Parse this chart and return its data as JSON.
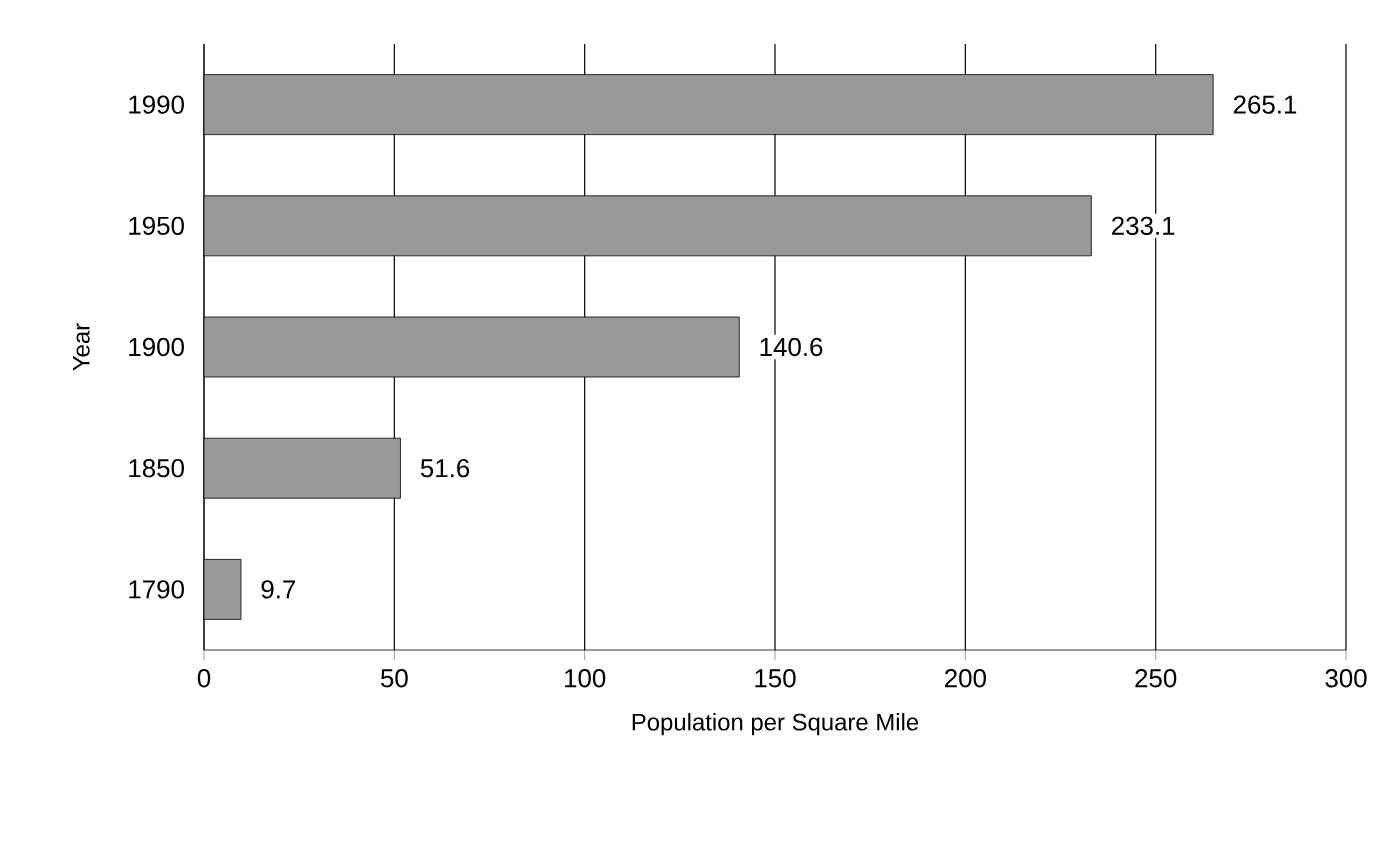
{
  "chart_data": {
    "type": "bar",
    "orientation": "horizontal",
    "xlabel": "Population per Square Mile",
    "ylabel": "Year",
    "categories": [
      "1990",
      "1950",
      "1900",
      "1850",
      "1790"
    ],
    "values": [
      265.1,
      233.1,
      140.6,
      51.6,
      9.7
    ],
    "color": "#999999",
    "xlim": [
      0,
      300
    ],
    "xticks": [
      0,
      50,
      100,
      150,
      200,
      250,
      300
    ],
    "grid": "x",
    "data_labels": true
  }
}
